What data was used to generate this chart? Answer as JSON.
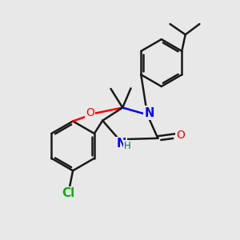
{
  "background_color": "#e8e8e8",
  "bond_color": "#1a1a1a",
  "bond_width": 1.8,
  "atom_colors": {
    "O": "#ff0000",
    "N": "#0000ff",
    "Cl": "#00b300",
    "H": "#007070",
    "C": "#1a1a1a"
  },
  "font_size": 9.5,
  "fig_width": 3.0,
  "fig_height": 3.0,
  "dpi": 100
}
